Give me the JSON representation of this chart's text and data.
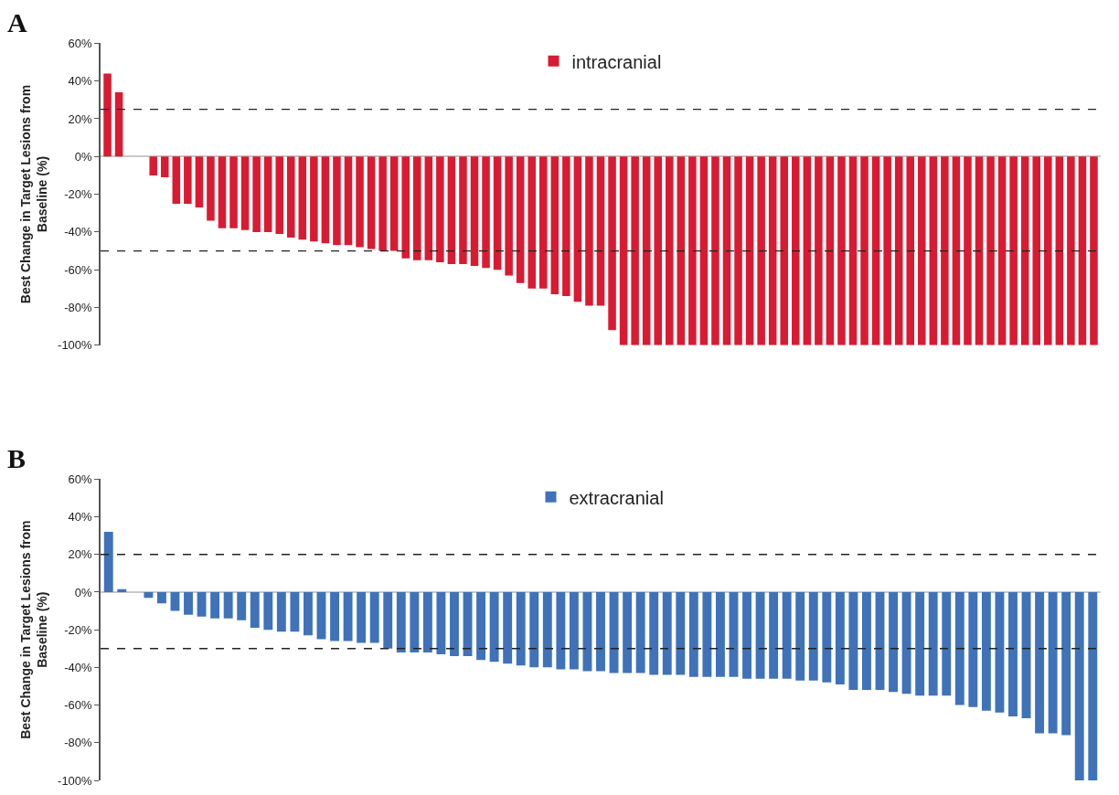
{
  "chart_data": [
    {
      "type": "bar",
      "title": "A",
      "ylabel": "Best Change in Target Lesions from Baseline (%)",
      "categories": [
        null,
        null,
        null,
        null,
        null,
        null,
        null,
        null,
        null,
        null,
        null,
        null,
        null,
        null,
        null,
        null,
        null,
        null,
        null,
        null,
        null,
        null,
        null,
        null,
        null,
        null,
        null,
        null,
        null,
        null,
        null,
        null,
        null,
        null,
        null,
        null,
        null,
        null,
        null,
        null,
        null,
        null,
        null,
        null,
        null,
        null,
        null,
        null,
        null,
        null,
        null,
        null,
        null,
        null,
        null,
        null,
        null,
        null,
        null,
        null,
        null,
        null,
        null,
        null,
        null,
        null,
        null,
        null,
        null,
        null,
        null,
        null,
        null,
        null,
        null,
        null,
        null,
        null,
        null,
        null,
        null,
        null,
        null,
        null,
        null,
        null,
        null
      ],
      "series": [
        {
          "name": "intracranial",
          "color": "#d81b33",
          "values": [
            44,
            34,
            0,
            0,
            -10,
            -11,
            -25,
            -25,
            -27,
            -34,
            -38,
            -38,
            -39,
            -40,
            -40,
            -41,
            -43,
            -44,
            -45,
            -46,
            -47,
            -47,
            -48,
            -49,
            -50,
            -50,
            -54,
            -55,
            -55,
            -56,
            -57,
            -57,
            -58,
            -59,
            -60,
            -63,
            -67,
            -70,
            -70,
            -73,
            -74,
            -77,
            -79,
            -79,
            -92,
            -100,
            -100,
            -100,
            -100,
            -100,
            -100,
            -100,
            -100,
            -100,
            -100,
            -100,
            -100,
            -100,
            -100,
            -100,
            -100,
            -100,
            -100,
            -100,
            -100,
            -100,
            -100,
            -100,
            -100,
            -100,
            -100,
            -100,
            -100,
            -100,
            -100,
            -100,
            -100,
            -100,
            -100,
            -100,
            -100,
            -100,
            -100,
            -100,
            -100,
            -100,
            -100
          ]
        }
      ],
      "ylim": [
        -100,
        60
      ],
      "yticks": [
        {
          "value": -100,
          "label": "-100%"
        },
        {
          "value": -80,
          "label": "-80%"
        },
        {
          "value": -60,
          "label": "-60%"
        },
        {
          "value": -40,
          "label": "-40%"
        },
        {
          "value": -20,
          "label": "-20%"
        },
        {
          "value": 0,
          "label": "0%"
        },
        {
          "value": 20,
          "label": "20%"
        },
        {
          "value": 40,
          "label": "40%"
        },
        {
          "value": 60,
          "label": "60%"
        }
      ],
      "ref_lines": [
        {
          "axis": "y",
          "value": 25,
          "color": "#222222",
          "line_style": "dashed"
        },
        {
          "axis": "y",
          "value": -50,
          "color": "#222222",
          "line_style": "dashed"
        }
      ],
      "legend": "top",
      "tick_labels": "y"
    },
    {
      "type": "bar",
      "title": "B",
      "ylabel": "Best Change in Target Lesions from Baseline (%)",
      "categories": [
        null,
        null,
        null,
        null,
        null,
        null,
        null,
        null,
        null,
        null,
        null,
        null,
        null,
        null,
        null,
        null,
        null,
        null,
        null,
        null,
        null,
        null,
        null,
        null,
        null,
        null,
        null,
        null,
        null,
        null,
        null,
        null,
        null,
        null,
        null,
        null,
        null,
        null,
        null,
        null,
        null,
        null,
        null,
        null,
        null,
        null,
        null,
        null,
        null,
        null,
        null,
        null,
        null,
        null,
        null,
        null,
        null,
        null,
        null,
        null,
        null,
        null,
        null,
        null,
        null,
        null,
        null,
        null,
        null,
        null,
        null,
        null,
        null,
        null,
        null
      ],
      "series": [
        {
          "name": "extracranial",
          "color": "#3f72b8",
          "values": [
            32,
            1.6,
            0,
            -3,
            -6,
            -10,
            -12,
            -13,
            -14,
            -14,
            -15,
            -19,
            -20,
            -21,
            -21,
            -23,
            -25,
            -26,
            -26,
            -27,
            -27,
            -30,
            -32,
            -32,
            -32,
            -33,
            -34,
            -34,
            -36,
            -37,
            -38,
            -39,
            -40,
            -40,
            -41,
            -41,
            -42,
            -42,
            -43,
            -43,
            -43,
            -44,
            -44,
            -44,
            -45,
            -45,
            -45,
            -45,
            -46,
            -46,
            -46,
            -46,
            -47,
            -47,
            -48,
            -49,
            -52,
            -52,
            -52,
            -53,
            -54,
            -55,
            -55,
            -55,
            -60,
            -61,
            -63,
            -64,
            -66,
            -67,
            -75,
            -75,
            -76,
            -100,
            -100
          ]
        }
      ],
      "ylim": [
        -100,
        60
      ],
      "yticks": [
        {
          "value": -100,
          "label": "-100%"
        },
        {
          "value": -80,
          "label": "-80%"
        },
        {
          "value": -60,
          "label": "-60%"
        },
        {
          "value": -40,
          "label": "-40%"
        },
        {
          "value": -20,
          "label": "-20%"
        },
        {
          "value": 0,
          "label": "0%"
        },
        {
          "value": 20,
          "label": "20%"
        },
        {
          "value": 40,
          "label": "40%"
        },
        {
          "value": 60,
          "label": "60%"
        }
      ],
      "ref_lines": [
        {
          "axis": "y",
          "value": 20,
          "color": "#222222",
          "line_style": "dashed"
        },
        {
          "axis": "y",
          "value": -30,
          "color": "#222222",
          "line_style": "dashed"
        }
      ],
      "legend": "top",
      "tick_labels": "y"
    }
  ]
}
